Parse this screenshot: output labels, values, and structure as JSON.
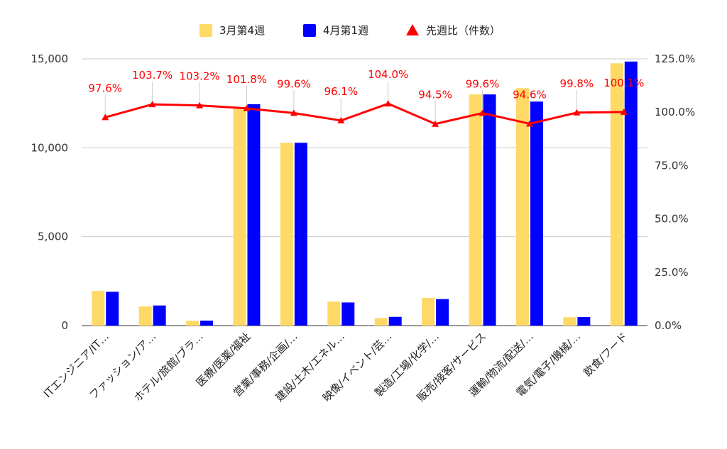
{
  "chart_data": {
    "type": "bar",
    "categories": [
      "ITエンジニア/IT…",
      "ファッション/ア…",
      "ホテル/旅館/ブラ…",
      "医療/医薬/福祉",
      "営業/事務/企画/…",
      "建設/土木/エネル…",
      "映像/イベント/芸…",
      "製造/工場/化学/…",
      "販売/接客/サービス",
      "運輸/物流/配送/…",
      "電気/電子/機械/…",
      "飲食/フード"
    ],
    "series": [
      {
        "name": "3月第4週",
        "color": "#FFD966",
        "axis": "left",
        "values": [
          1950,
          1080,
          270,
          12200,
          10280,
          1350,
          420,
          1560,
          13000,
          13350,
          470,
          14750
        ]
      },
      {
        "name": "4月第1週",
        "color": "#0000FF",
        "axis": "left",
        "values": [
          1900,
          1130,
          280,
          12450,
          10280,
          1300,
          490,
          1490,
          13000,
          12600,
          480,
          14850
        ]
      },
      {
        "name": "先週比（件数）",
        "color": "#FF0000",
        "axis": "right",
        "type": "line",
        "values": [
          97.6,
          103.7,
          103.2,
          101.8,
          99.6,
          96.1,
          104.0,
          94.5,
          99.6,
          94.6,
          99.8,
          100.1
        ],
        "labels": [
          "97.6%",
          "103.7%",
          "103.2%",
          "101.8%",
          "99.6%",
          "96.1%",
          "104.0%",
          "94.5%",
          "99.6%",
          "94.6%",
          "99.8%",
          "100.1%"
        ]
      }
    ],
    "left_axis": {
      "ylim": [
        0,
        15000
      ],
      "ticks": [
        "0",
        "5,000",
        "10,000",
        "15,000"
      ],
      "tick_values": [
        0,
        5000,
        10000,
        15000
      ]
    },
    "right_axis": {
      "ylim": [
        0,
        125
      ],
      "ticks": [
        "0.0%",
        "25.0%",
        "50.0%",
        "75.0%",
        "100.0%",
        "125.0%"
      ],
      "tick_values": [
        0,
        25,
        50,
        75,
        100,
        125
      ]
    },
    "legend_position": "top",
    "grid": true
  }
}
